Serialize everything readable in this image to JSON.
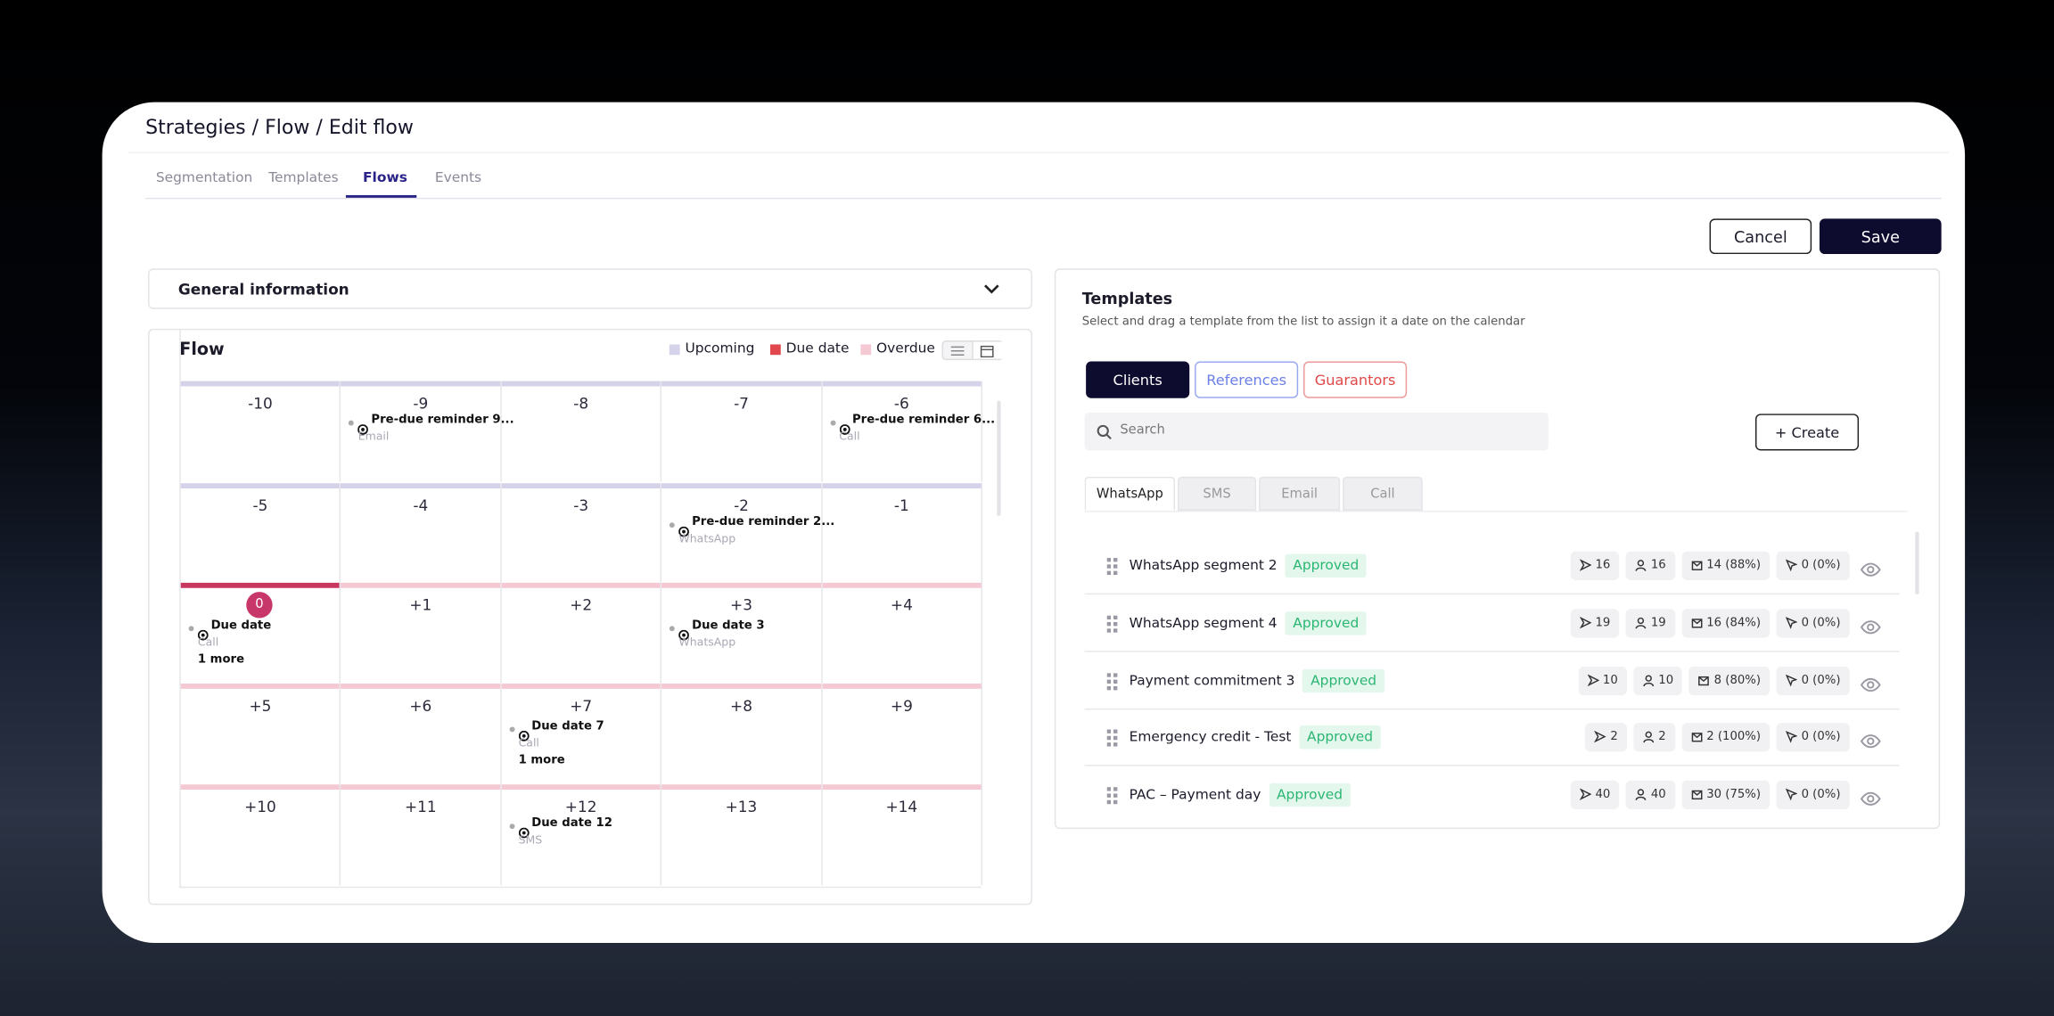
{
  "breadcrumb": "Strategies / Flow / Edit flow",
  "tabs": [
    "Segmentation",
    "Templates",
    "Flows",
    "Events"
  ],
  "actions": {
    "cancel": "Cancel",
    "save": "Save"
  },
  "general_information": "General information",
  "flow": {
    "title": "Flow",
    "legend": [
      {
        "label": "Upcoming",
        "color": "#d4d3ea"
      },
      {
        "label": "Due date",
        "color": "#e0484d"
      },
      {
        "label": "Overdue",
        "color": "#f4c9d3"
      }
    ],
    "weeks": [
      [
        {
          "day": "-10"
        },
        {
          "day": "-9",
          "events": [
            {
              "title": "Pre-due reminder 9...",
              "channel": "Email"
            }
          ]
        },
        {
          "day": "-8"
        },
        {
          "day": "-7"
        },
        {
          "day": "-6",
          "events": [
            {
              "title": "Pre-due reminder 6...",
              "channel": "Call"
            }
          ]
        }
      ],
      [
        {
          "day": "-5"
        },
        {
          "day": "-4"
        },
        {
          "day": "-3"
        },
        {
          "day": "-2",
          "events": [
            {
              "title": "Pre-due reminder 2...",
              "channel": "WhatsApp"
            }
          ]
        },
        {
          "day": "-1"
        }
      ],
      [
        {
          "day": "0",
          "events": [
            {
              "title": "Due date",
              "channel": "Call"
            }
          ],
          "more": "1 more"
        },
        {
          "day": "+1"
        },
        {
          "day": "+2"
        },
        {
          "day": "+3",
          "events": [
            {
              "title": "Due date 3",
              "channel": "WhatsApp"
            }
          ]
        },
        {
          "day": "+4"
        }
      ],
      [
        {
          "day": "+5"
        },
        {
          "day": "+6"
        },
        {
          "day": "+7",
          "events": [
            {
              "title": "Due date 7",
              "channel": "Call"
            }
          ],
          "more": "1 more"
        },
        {
          "day": "+8"
        },
        {
          "day": "+9"
        }
      ],
      [
        {
          "day": "+10"
        },
        {
          "day": "+11"
        },
        {
          "day": "+12",
          "events": [
            {
              "title": "Due date 12",
              "channel": "SMS"
            }
          ]
        },
        {
          "day": "+13"
        },
        {
          "day": "+14"
        }
      ]
    ]
  },
  "templates": {
    "title": "Templates",
    "subtitle": "Select and drag a template from the list to assign it a date on the calendar",
    "audiences": [
      "Clients",
      "References",
      "Guarantors"
    ],
    "search_placeholder": "Search",
    "create": "+ Create",
    "channels": [
      "WhatsApp",
      "SMS",
      "Email",
      "Call"
    ],
    "items": [
      {
        "name": "WhatsApp segment 2",
        "status": "Approved",
        "sent": 16,
        "recipients": 16,
        "delivered": "14 (88%)",
        "failed": "0 (0%)"
      },
      {
        "name": "WhatsApp segment 4",
        "status": "Approved",
        "sent": 19,
        "recipients": 19,
        "delivered": "16 (84%)",
        "failed": "0 (0%)"
      },
      {
        "name": "Payment commitment 3",
        "status": "Approved",
        "sent": 10,
        "recipients": 10,
        "delivered": "8 (80%)",
        "failed": "0 (0%)"
      },
      {
        "name": "Emergency credit - Test",
        "status": "Approved",
        "sent": 2,
        "recipients": 2,
        "delivered": "2 (100%)",
        "failed": "0 (0%)"
      },
      {
        "name": "PAC – Payment day",
        "status": "Approved",
        "sent": 40,
        "recipients": 40,
        "delivered": "30 (75%)",
        "failed": "0 (0%)"
      }
    ]
  }
}
